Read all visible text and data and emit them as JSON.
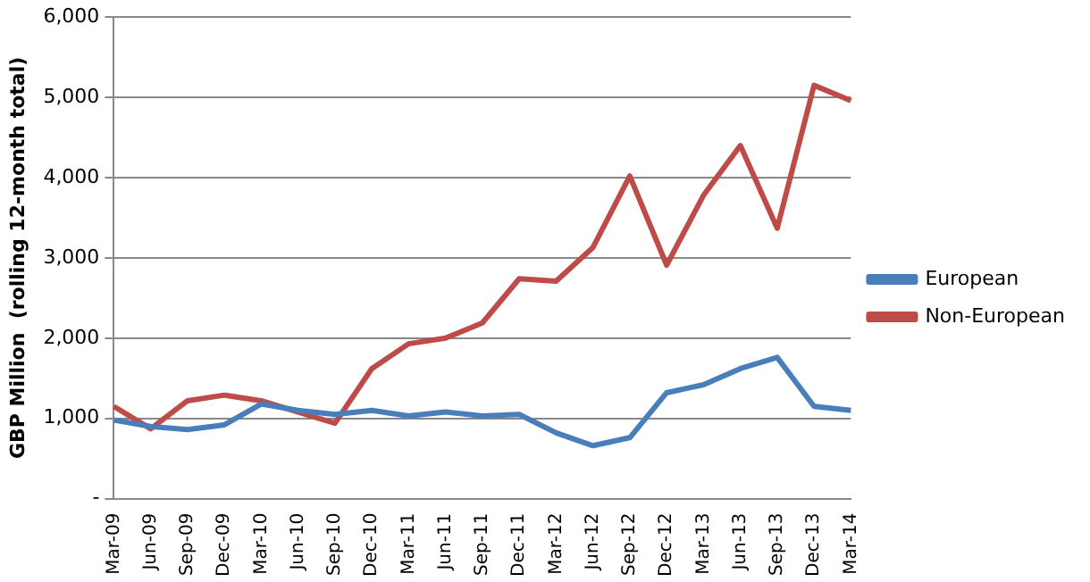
{
  "chart_data": {
    "type": "line",
    "ylabel": "GBP Million  (rolling 12-month total)",
    "categories": [
      "Mar-09",
      "Jun-09",
      "Sep-09",
      "Dec-09",
      "Mar-10",
      "Jun-10",
      "Sep-10",
      "Dec-10",
      "Mar-11",
      "Jun-11",
      "Sep-11",
      "Dec-11",
      "Mar-12",
      "Jun-12",
      "Sep-12",
      "Dec-12",
      "Mar-13",
      "Jun-13",
      "Sep-13",
      "Dec-13",
      "Mar-14"
    ],
    "series": [
      {
        "name": "European",
        "color": "#4a7ebb",
        "values": [
          980,
          900,
          860,
          920,
          1180,
          1100,
          1050,
          1100,
          1030,
          1080,
          1030,
          1050,
          820,
          660,
          760,
          1320,
          1420,
          1620,
          1760,
          1150,
          1100
        ]
      },
      {
        "name": "Non-European",
        "color": "#be4b48",
        "values": [
          1150,
          870,
          1220,
          1290,
          1220,
          1080,
          940,
          1620,
          1930,
          2000,
          2190,
          2740,
          2710,
          3130,
          4020,
          2910,
          3780,
          4400,
          3370,
          5150,
          4960
        ]
      }
    ],
    "ylim": [
      0,
      6000
    ],
    "yticks": [
      {
        "value": 0,
        "label": "-"
      },
      {
        "value": 1000,
        "label": "1,000"
      },
      {
        "value": 2000,
        "label": "2,000"
      },
      {
        "value": 3000,
        "label": "3,000"
      },
      {
        "value": 4000,
        "label": "4,000"
      },
      {
        "value": 5000,
        "label": "5,000"
      },
      {
        "value": 6000,
        "label": "6,000"
      }
    ],
    "grid": "y",
    "legend": "right",
    "marker": "none",
    "line_style": "solid"
  }
}
